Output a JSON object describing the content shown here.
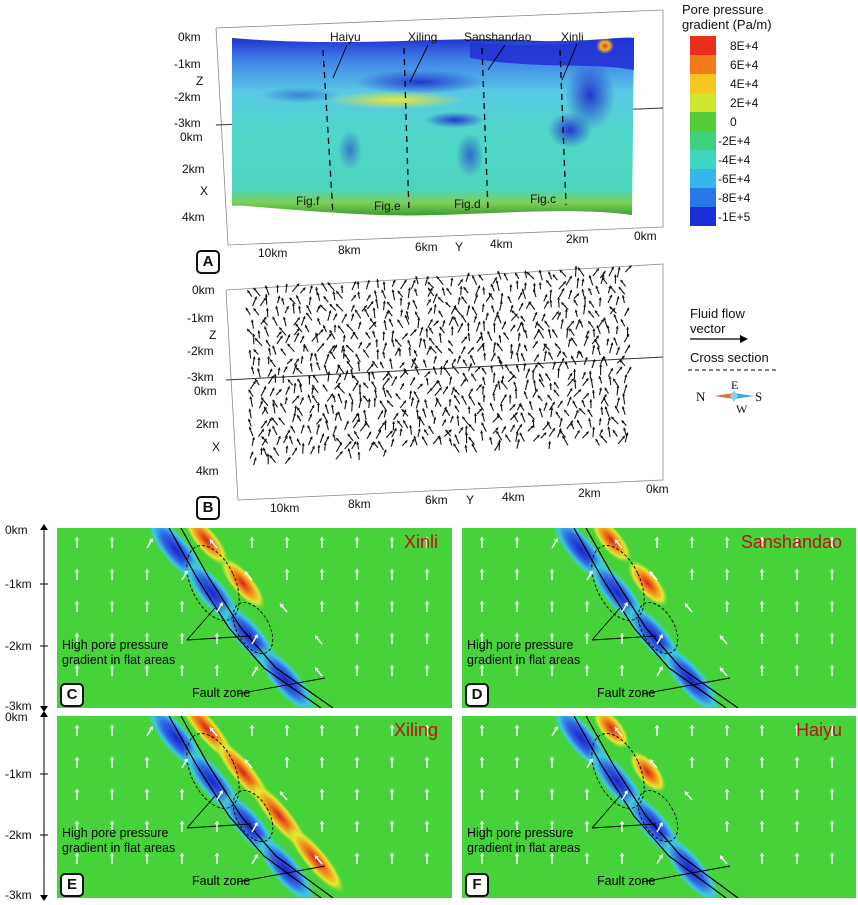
{
  "legend": {
    "title_line1": "Pore pressure",
    "title_line2": "gradient (Pa/m)",
    "levels": [
      {
        "label": "8E+4",
        "color": "#e8301c"
      },
      {
        "label": "6E+4",
        "color": "#f47a1e"
      },
      {
        "label": "4E+4",
        "color": "#f9c522"
      },
      {
        "label": "2E+4",
        "color": "#cfe52e"
      },
      {
        "label": "0",
        "color": "#55cc38"
      },
      {
        "label": "-2E+4",
        "color": "#3fd17f"
      },
      {
        "label": "-4E+4",
        "color": "#3dd6c0"
      },
      {
        "label": "-6E+4",
        "color": "#36b7ea"
      },
      {
        "label": "-8E+4",
        "color": "#2878e8"
      },
      {
        "label": "-1E+5",
        "color": "#1b2fd8"
      }
    ]
  },
  "flow_legend": {
    "line1": "Fluid flow",
    "line2": "vector",
    "cross_section": "Cross section"
  },
  "compass": {
    "n": "N",
    "e": "E",
    "s": "S",
    "w": "W"
  },
  "panel_a": {
    "letter": "A",
    "mines": [
      "Haiyu",
      "Xiling",
      "Sanshandao",
      "Xinli"
    ],
    "figs": [
      "Fig.f",
      "Fig.e",
      "Fig.d",
      "Fig.c"
    ],
    "z_ticks": [
      "0km",
      "-1km",
      "-2km",
      "-3km"
    ],
    "x_ticks": [
      "0km",
      "2km",
      "4km"
    ],
    "y_ticks": [
      "10km",
      "8km",
      "6km",
      "4km",
      "2km",
      "0km"
    ],
    "z_label": "Z",
    "x_label": "X",
    "y_label": "Y"
  },
  "panel_b": {
    "letter": "B",
    "z_ticks": [
      "0km",
      "-1km",
      "-2km",
      "-3km"
    ],
    "x_ticks": [
      "0km",
      "2km",
      "4km"
    ],
    "y_ticks": [
      "10km",
      "8km",
      "6km",
      "4km",
      "2km",
      "0km"
    ],
    "z_label": "Z",
    "x_label": "X",
    "y_label": "Y"
  },
  "depth_ticks": [
    "0km",
    "-1km",
    "-2km",
    "-3km"
  ],
  "slices": [
    {
      "letter": "C",
      "title": "Xinli",
      "note1": "High pore pressure",
      "note2": "gradient in flat areas",
      "fault": "Fault zone"
    },
    {
      "letter": "D",
      "title": "Sanshandao",
      "note1": "High pore pressure",
      "note2": "gradient in flat areas",
      "fault": "Fault zone"
    },
    {
      "letter": "E",
      "title": "Xiling",
      "note1": "High pore pressure",
      "note2": "gradient in flat areas",
      "fault": "Fault zone"
    },
    {
      "letter": "F",
      "title": "Haiyu",
      "note1": "High pore pressure",
      "note2": "gradient in flat areas",
      "fault": "Fault zone"
    }
  ]
}
